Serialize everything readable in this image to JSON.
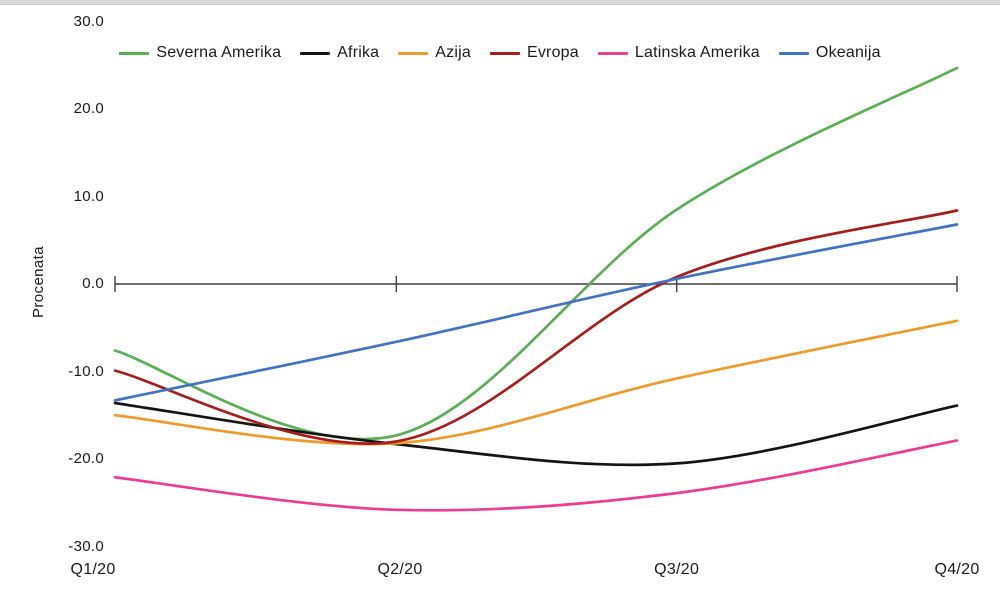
{
  "page": {
    "background": "#ffffff",
    "top_strip_color": "#d9d9d9"
  },
  "chart_data": {
    "type": "line",
    "title": "",
    "xlabel": "",
    "ylabel": "Procenata",
    "categories": [
      "Q1/20",
      "Q2/20",
      "Q3/20",
      "Q4/20"
    ],
    "ylim": [
      -30,
      30
    ],
    "ytick_values": [
      30,
      20,
      10,
      0,
      -10,
      -20,
      -30
    ],
    "ytick_labels": [
      "30.0",
      "20.0",
      "10.0",
      "0.0",
      "-10.0",
      "-20.0",
      "-30.0"
    ],
    "grid": "off",
    "legend_position": "top-center",
    "line_style": "smooth-spline",
    "axis_color": "#404040",
    "series": [
      {
        "name": "Severna Amerika",
        "color": "#5BAD56",
        "values": [
          -7.6,
          -17.3,
          8.5,
          24.7
        ]
      },
      {
        "name": "Afrika",
        "color": "#141414",
        "values": [
          -13.6,
          -18.3,
          -20.5,
          -13.9
        ]
      },
      {
        "name": "Azija",
        "color": "#EE9B2D",
        "values": [
          -15.0,
          -18.2,
          -10.8,
          -4.2
        ]
      },
      {
        "name": "Evropa",
        "color": "#A41E1E",
        "values": [
          -9.9,
          -18.0,
          0.8,
          8.4
        ]
      },
      {
        "name": "Latinska Amerika",
        "color": "#EB3C96",
        "values": [
          -22.1,
          -25.8,
          -23.9,
          -17.9
        ]
      },
      {
        "name": "Okeanija",
        "color": "#4472C4",
        "values": [
          -13.3,
          -6.6,
          0.6,
          6.8
        ]
      }
    ]
  }
}
